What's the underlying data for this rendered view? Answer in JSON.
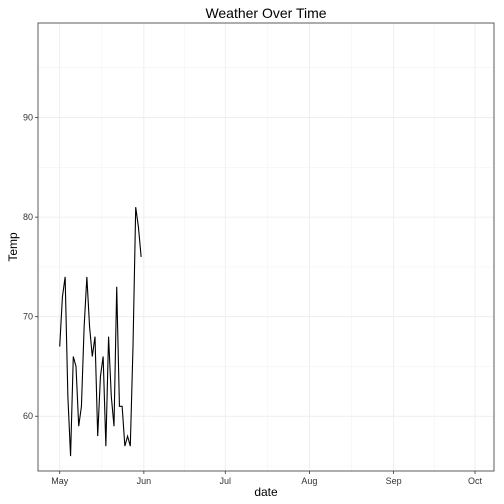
{
  "chart_data": {
    "type": "line",
    "title": "Weather Over Time",
    "xlabel": "date",
    "ylabel": "Temp",
    "x_ticks": [
      {
        "date": "2013-05-01",
        "label": "May"
      },
      {
        "date": "2013-06-01",
        "label": "Jun"
      },
      {
        "date": "2013-07-01",
        "label": "Jul"
      },
      {
        "date": "2013-08-01",
        "label": "Aug"
      },
      {
        "date": "2013-09-01",
        "label": "Sep"
      },
      {
        "date": "2013-10-01",
        "label": "Oct"
      }
    ],
    "y_ticks": [
      60,
      70,
      80,
      90
    ],
    "xlim": [
      "2013-04-23",
      "2013-10-08"
    ],
    "ylim": [
      54.5,
      99.5
    ],
    "grid": true,
    "series": [
      {
        "color": "#000000",
        "x": [
          "2013-05-01",
          "2013-05-02",
          "2013-05-03",
          "2013-05-04",
          "2013-05-05",
          "2013-05-06",
          "2013-05-07",
          "2013-05-08",
          "2013-05-09",
          "2013-05-10",
          "2013-05-11",
          "2013-05-12",
          "2013-05-13",
          "2013-05-14",
          "2013-05-15",
          "2013-05-16",
          "2013-05-17",
          "2013-05-18",
          "2013-05-19",
          "2013-05-20",
          "2013-05-21",
          "2013-05-22",
          "2013-05-23",
          "2013-05-24",
          "2013-05-25",
          "2013-05-26",
          "2013-05-27",
          "2013-05-28",
          "2013-05-29",
          "2013-05-30",
          "2013-05-31"
        ],
        "y": [
          67,
          72,
          74,
          62,
          56,
          66,
          65,
          59,
          61,
          69,
          74,
          69,
          66,
          68,
          58,
          64,
          66,
          57,
          68,
          62,
          59,
          73,
          61,
          61,
          57,
          58,
          57,
          67,
          81,
          79,
          76
        ]
      }
    ]
  }
}
